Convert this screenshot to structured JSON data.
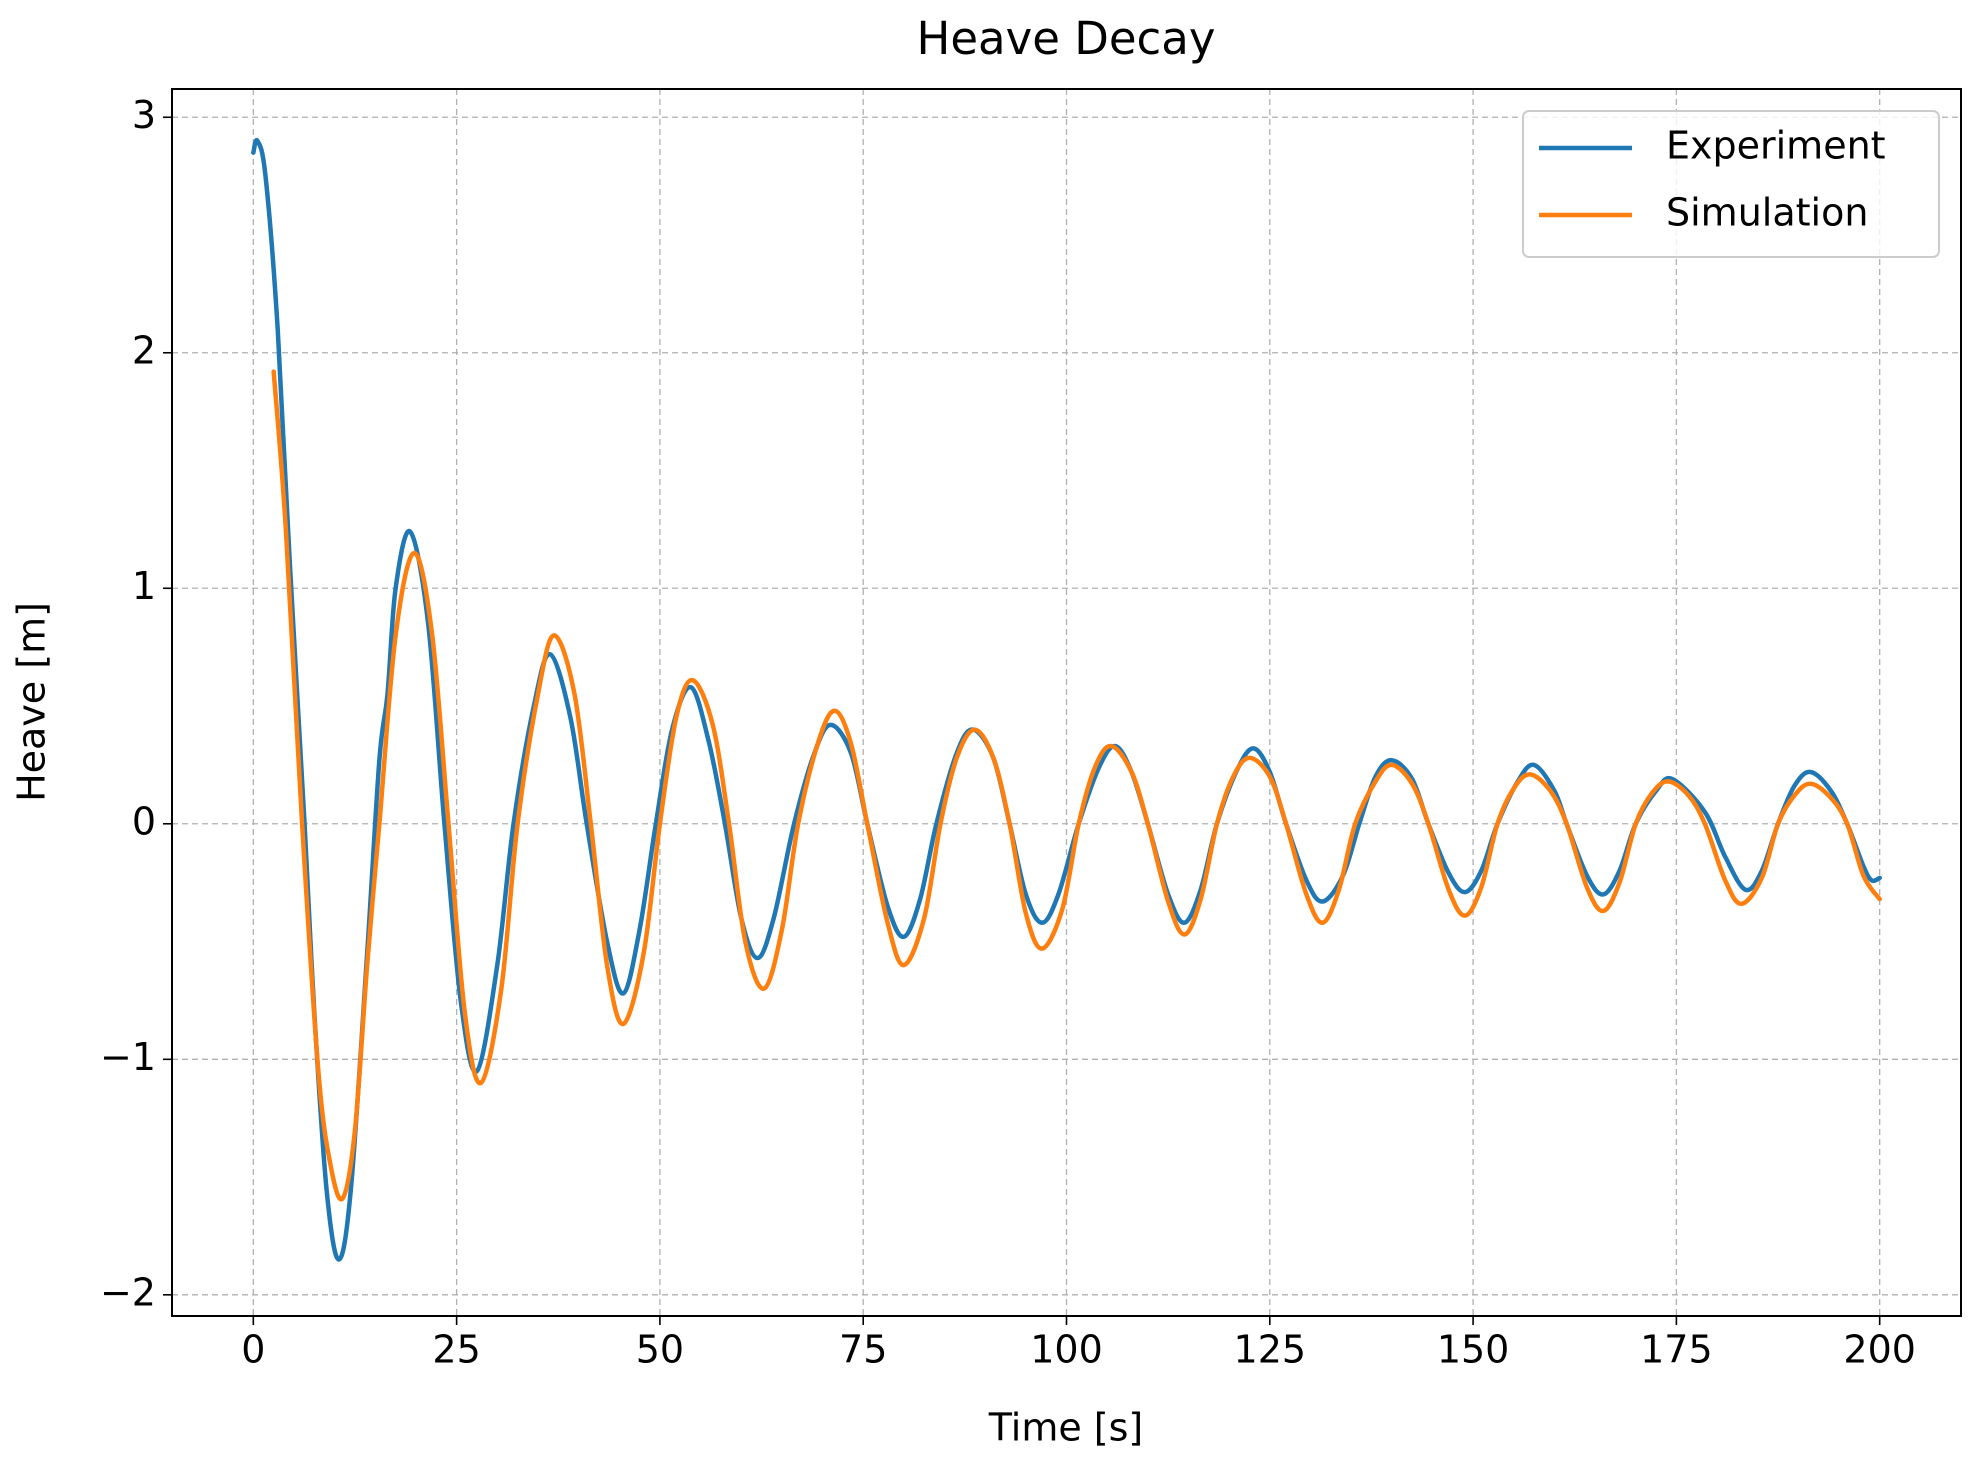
{
  "chart_data": {
    "type": "line",
    "title": "Heave Decay",
    "x_label": "Time [s]",
    "y_label": "Heave [m]",
    "xlim": [
      -10,
      210
    ],
    "ylim": [
      -2.09,
      3.12
    ],
    "xticks": [
      0,
      25,
      50,
      75,
      100,
      125,
      150,
      175,
      200
    ],
    "yticks": [
      {
        "value": -2,
        "label": "−2"
      },
      {
        "value": -1,
        "label": "−1"
      },
      0,
      1,
      2,
      3
    ],
    "grid": true,
    "legend": "upper right",
    "series": [
      {
        "name": "Experiment",
        "color": "#1f77b4",
        "x": [
          0,
          0.5,
          1.5,
          3,
          4.5,
          6.3,
          7.5,
          9,
          10.5,
          12,
          14,
          15.5,
          16.5,
          17.5,
          19.3,
          21.5,
          23.5,
          25.5,
          27.5,
          30,
          32,
          34.5,
          36.5,
          39,
          41,
          43.5,
          45.5,
          47.5,
          49.5,
          51.5,
          53.8,
          56,
          58,
          60,
          62,
          64,
          66.5,
          69,
          71,
          73.5,
          75.5,
          78,
          80,
          82,
          84,
          86.5,
          88.5,
          91,
          93,
          95,
          97,
          99,
          101.5,
          104,
          106,
          108,
          110,
          112.5,
          114.5,
          116.5,
          118.5,
          121,
          123,
          125,
          127,
          129.5,
          131.5,
          134,
          136,
          138,
          140,
          142.5,
          144.5,
          147,
          149,
          151,
          153,
          155.5,
          157.5,
          160,
          161.5,
          164,
          166,
          168,
          170,
          172.5,
          174.5,
          178.5,
          181,
          183.5,
          185.5,
          187.5,
          189.5,
          191.5,
          194,
          196,
          198,
          199,
          200
        ],
        "values": [
          2.85,
          2.9,
          2.75,
          2.1,
          1.1,
          0,
          -0.8,
          -1.55,
          -1.85,
          -1.55,
          -0.55,
          0.27,
          0.55,
          1.0,
          1.24,
          0.85,
          0,
          -0.75,
          -1.05,
          -0.6,
          0,
          0.5,
          0.72,
          0.45,
          0,
          -0.5,
          -0.72,
          -0.45,
          0,
          0.4,
          0.58,
          0.35,
          0,
          -0.4,
          -0.57,
          -0.4,
          0,
          0.3,
          0.42,
          0.3,
          0,
          -0.35,
          -0.48,
          -0.32,
          0,
          0.3,
          0.4,
          0.28,
          0,
          -0.3,
          -0.42,
          -0.3,
          0,
          0.24,
          0.33,
          0.22,
          0,
          -0.3,
          -0.42,
          -0.28,
          0,
          0.23,
          0.32,
          0.22,
          0,
          -0.24,
          -0.33,
          -0.22,
          0,
          0.2,
          0.27,
          0.19,
          0,
          -0.21,
          -0.29,
          -0.2,
          0,
          0.18,
          0.25,
          0.14,
          0,
          -0.22,
          -0.3,
          -0.2,
          0,
          0.14,
          0.19,
          0.05,
          -0.14,
          -0.28,
          -0.2,
          0,
          0.16,
          0.22,
          0.14,
          0,
          -0.18,
          -0.24,
          -0.23
        ]
      },
      {
        "name": "Simulation",
        "color": "#ff7f0e",
        "x": [
          2.5,
          4,
          6,
          8,
          9.5,
          11,
          12.5,
          14,
          15.5,
          17.5,
          19.8,
          22,
          24,
          26,
          28,
          30.5,
          32.5,
          35,
          37,
          39.5,
          41.5,
          43.5,
          45.5,
          48,
          50,
          52,
          54,
          56.5,
          58.5,
          60.5,
          62.8,
          65,
          67,
          69.5,
          71.5,
          73.5,
          75.5,
          78,
          80,
          82.5,
          84.5,
          86.5,
          88.7,
          91,
          93,
          95,
          97,
          99.5,
          101.5,
          103.5,
          105.5,
          108,
          110,
          112.5,
          114.5,
          116.5,
          118.5,
          120.5,
          122.5,
          125,
          127,
          129.5,
          131.5,
          133.5,
          135.5,
          138,
          140,
          142.5,
          144.5,
          147,
          149,
          151,
          153,
          155,
          157,
          159.5,
          161.5,
          164,
          166,
          168,
          170,
          172,
          174,
          176.5,
          178.5,
          181,
          183,
          185.5,
          187.5,
          189.5,
          191.5,
          194,
          196,
          198,
          200
        ],
        "values": [
          1.92,
          1.25,
          0,
          -1.05,
          -1.45,
          -1.59,
          -1.3,
          -0.6,
          0,
          0.8,
          1.15,
          0.8,
          0,
          -0.8,
          -1.1,
          -0.7,
          0,
          0.55,
          0.8,
          0.55,
          0,
          -0.6,
          -0.85,
          -0.55,
          0,
          0.45,
          0.61,
          0.42,
          0,
          -0.5,
          -0.7,
          -0.45,
          0,
          0.35,
          0.48,
          0.34,
          0,
          -0.42,
          -0.6,
          -0.4,
          0,
          0.28,
          0.4,
          0.28,
          0,
          -0.38,
          -0.53,
          -0.36,
          0,
          0.24,
          0.33,
          0.22,
          0,
          -0.33,
          -0.47,
          -0.32,
          0,
          0.2,
          0.28,
          0.2,
          0,
          -0.3,
          -0.42,
          -0.28,
          0,
          0.18,
          0.25,
          0.17,
          0,
          -0.28,
          -0.39,
          -0.27,
          0,
          0.15,
          0.21,
          0.14,
          0,
          -0.27,
          -0.37,
          -0.25,
          0,
          0.13,
          0.18,
          0.12,
          0,
          -0.24,
          -0.34,
          -0.23,
          0,
          0.12,
          0.17,
          0.11,
          0,
          -0.22,
          -0.32
        ]
      }
    ]
  }
}
